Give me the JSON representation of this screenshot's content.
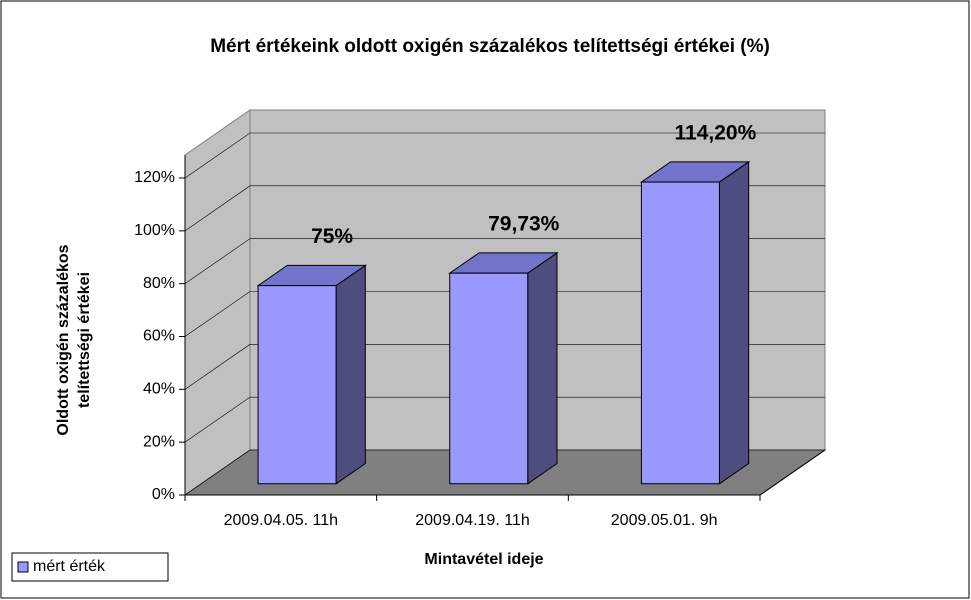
{
  "chart_data": {
    "type": "bar3d",
    "title": "Mért értékeink oldott oxigén százalékos telítettségi értékei (%)",
    "x_label": "Mintavétel ideje",
    "y_label": [
      "Oldott oxigén százalékos",
      "telítettségi értékei"
    ],
    "categories": [
      "2009.04.05. 11h",
      "2009.04.19. 11h",
      "2009.05.01. 9h"
    ],
    "series": [
      {
        "name": "mért érték",
        "color": "#9999ff",
        "values": [
          75,
          79.73,
          114.2
        ],
        "value_labels": [
          "75%",
          "79,73%",
          "114,20%"
        ]
      }
    ],
    "ylim": [
      0,
      120
    ],
    "yticks": [
      {
        "value": 0,
        "label": "0%"
      },
      {
        "value": 20,
        "label": "20%"
      },
      {
        "value": 40,
        "label": "40%"
      },
      {
        "value": 60,
        "label": "60%"
      },
      {
        "value": 80,
        "label": "80%"
      },
      {
        "value": 100,
        "label": "100%"
      },
      {
        "value": 120,
        "label": "120%"
      }
    ],
    "grid": true,
    "legend": "bottom-left"
  }
}
